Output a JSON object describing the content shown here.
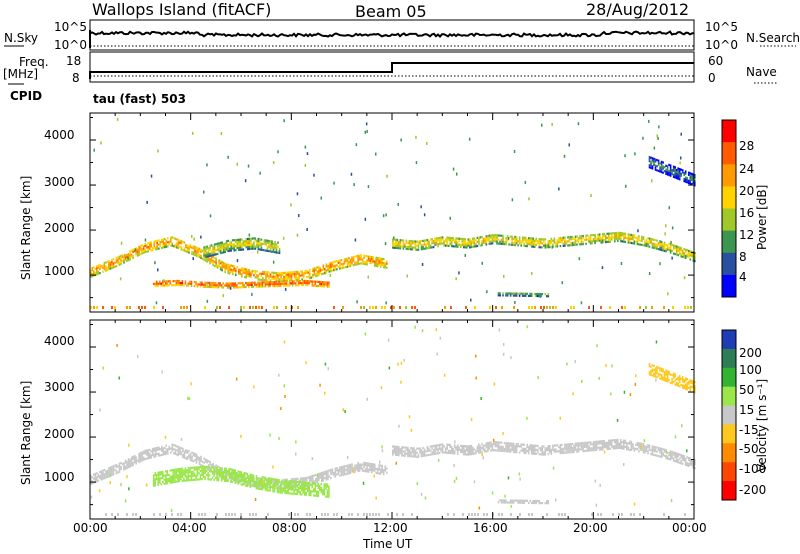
{
  "header": {
    "site": "Wallops Island (fitACF)",
    "beam": "Beam 05",
    "date": "28/Aug/2012"
  },
  "strip_panels": {
    "nsky_label": "N.Sky",
    "nsearch_label": "N.Search",
    "freq_label_line1": "Freq.",
    "freq_label_line2": "[MHz]",
    "nave_label": "Nave",
    "cpid_label": "CPID",
    "cpid_value": "tau (fast) 503",
    "noise_ticks_left": [
      "10^5",
      "10^0"
    ],
    "noise_ticks_right": [
      "10^5",
      "10^0"
    ],
    "freq_ticks_left": [
      "18",
      "8"
    ],
    "freq_ticks_right": [
      "60",
      "0"
    ]
  },
  "colorbars": {
    "power": {
      "label": "Power [dB]",
      "ticks": [
        "28",
        "24",
        "20",
        "16",
        "12",
        "8",
        "4"
      ],
      "colors": [
        "#ff0000",
        "#ff5a00",
        "#ff9a00",
        "#ffd200",
        "#a0c828",
        "#3c9650",
        "#2850a0",
        "#0000ff"
      ]
    },
    "velocity": {
      "label": "Velocity [m s⁻¹]",
      "ticks": [
        "200",
        "100",
        "50",
        "15",
        "-15",
        "-50",
        "-100",
        "-200"
      ],
      "colors": [
        "#1e3cb4",
        "#2e7d57",
        "#32b432",
        "#9be64b",
        "#c8c8c8",
        "#ffc81e",
        "#ff8c00",
        "#ff4600",
        "#ff0000"
      ]
    }
  },
  "axes": {
    "ylabel": "Slant Range [km]",
    "y_ticks": [
      "4000",
      "3000",
      "2000",
      "1000"
    ],
    "x_ticks": [
      "00:00",
      "04:00",
      "08:00",
      "12:00",
      "16:00",
      "20:00",
      "00:00"
    ],
    "xlabel": "Time UT"
  },
  "chart_data": [
    {
      "type": "heatmap",
      "name": "power",
      "xlabel": "Time UT",
      "ylabel": "Slant Range [km]",
      "xlim": [
        0,
        24
      ],
      "ylim": [
        180,
        4600
      ],
      "zlim": [
        0,
        30
      ],
      "regions": [
        {
          "t0": 0.0,
          "t1": 11.8,
          "r": [
            1050,
            1300,
            1600,
            1750,
            1500,
            1150,
            1000,
            950,
            1000,
            1200,
            1350,
            1250
          ],
          "w": 220,
          "z": 22
        },
        {
          "t0": 2.5,
          "t1": 9.5,
          "r": [
            800,
            820,
            780,
            760,
            780,
            800,
            820,
            780
          ],
          "w": 120,
          "z": 26
        },
        {
          "t0": 4.5,
          "t1": 7.5,
          "r": [
            1500,
            1650,
            1700,
            1600
          ],
          "w": 260,
          "z": 16
        },
        {
          "t0": 12.0,
          "t1": 24.0,
          "r": [
            1700,
            1650,
            1750,
            1700,
            1800,
            1750,
            1700,
            1750,
            1800,
            1850,
            1750,
            1600,
            1400
          ],
          "w": 220,
          "z": 18
        },
        {
          "t0": 16.2,
          "t1": 18.2,
          "r": [
            560,
            550,
            540
          ],
          "w": 60,
          "z": 14
        },
        {
          "t0": 22.2,
          "t1": 24.0,
          "r": [
            3500,
            3300,
            3100
          ],
          "w": 250,
          "z": 8
        }
      ]
    },
    {
      "type": "heatmap",
      "name": "velocity",
      "xlabel": "Time UT",
      "ylabel": "Slant Range [km]",
      "xlim": [
        0,
        24
      ],
      "ylim": [
        180,
        4600
      ],
      "zlim": [
        -200,
        200
      ],
      "regions": [
        {
          "t0": 0.0,
          "t1": 11.8,
          "r": [
            1050,
            1300,
            1600,
            1750,
            1500,
            1150,
            1000,
            950,
            1000,
            1200,
            1350,
            1250
          ],
          "w": 220,
          "z": 0
        },
        {
          "t0": 2.5,
          "t1": 9.5,
          "r": [
            1050,
            1150,
            1200,
            1150,
            1000,
            900,
            850,
            800
          ],
          "w": 300,
          "z": 30
        },
        {
          "t0": 12.0,
          "t1": 24.0,
          "r": [
            1700,
            1650,
            1750,
            1700,
            1800,
            1750,
            1700,
            1750,
            1800,
            1850,
            1750,
            1600,
            1400
          ],
          "w": 220,
          "z": 0
        },
        {
          "t0": 16.2,
          "t1": 18.2,
          "r": [
            560,
            550,
            540
          ],
          "w": 60,
          "z": 0
        },
        {
          "t0": 22.2,
          "t1": 24.0,
          "r": [
            3500,
            3300,
            3100
          ],
          "w": 250,
          "z": -30
        }
      ]
    }
  ]
}
